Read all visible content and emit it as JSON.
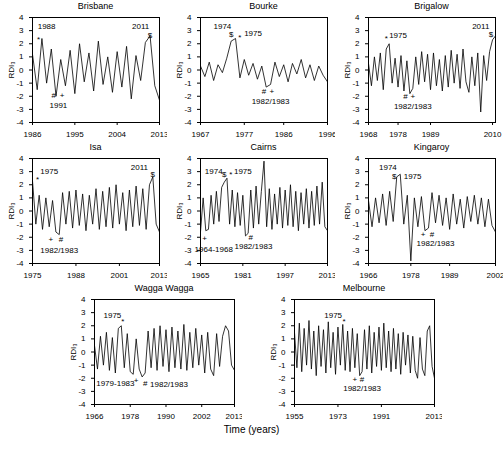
{
  "xlabel": "Time (years)",
  "chart_data": [
    {
      "type": "line",
      "title": "Brisbane",
      "ylabel": "RDI₃",
      "color": "#000000",
      "xlim": [
        1986,
        2013
      ],
      "xticks": [
        1986,
        1995,
        2004,
        2013
      ],
      "ylim": [
        -4,
        4
      ],
      "yticks": [
        -4,
        -3,
        -2,
        -1,
        0,
        1,
        2,
        3,
        4
      ],
      "x": [
        1986,
        1987,
        1988,
        1989,
        1990,
        1991,
        1992,
        1993,
        1994,
        1995,
        1996,
        1997,
        1998,
        1999,
        2000,
        2001,
        2002,
        2003,
        2004,
        2005,
        2006,
        2007,
        2008,
        2009,
        2010,
        2011,
        2012,
        2013
      ],
      "values": [
        1.2,
        -1.5,
        2.4,
        -1.0,
        1.6,
        -2.0,
        0.8,
        -1.2,
        1.5,
        -1.8,
        2.0,
        -0.9,
        1.3,
        -1.6,
        2.2,
        -1.1,
        1.0,
        -1.7,
        1.4,
        -1.3,
        1.8,
        -2.2,
        1.1,
        -0.8,
        2.1,
        2.6,
        -1.2,
        -2.3
      ],
      "annotations": [
        {
          "text": "1988",
          "x": 1989,
          "y": 3.3
        },
        {
          "text": "*",
          "x": 1987.3,
          "y": 2.3
        },
        {
          "text": "2011",
          "x": 2009,
          "y": 3.3
        },
        {
          "text": "$",
          "x": 2011,
          "y": 2.6
        },
        {
          "text": "#",
          "x": 1990.5,
          "y": -1.9
        },
        {
          "text": "+",
          "x": 1992.3,
          "y": -1.9
        },
        {
          "text": "1991",
          "x": 1991.5,
          "y": -2.7
        }
      ]
    },
    {
      "type": "line",
      "title": "Bourke",
      "ylabel": "RDI₃",
      "color": "#000000",
      "xlim": [
        1967,
        1996
      ],
      "xticks": [
        1967,
        1977,
        1986,
        1996
      ],
      "ylim": [
        -4,
        4
      ],
      "yticks": [
        -4,
        -3,
        -2,
        -1,
        0,
        1,
        2,
        3,
        4
      ],
      "x": [
        1967,
        1968,
        1969,
        1970,
        1971,
        1972,
        1973,
        1974,
        1975,
        1976,
        1977,
        1978,
        1979,
        1980,
        1981,
        1982,
        1983,
        1984,
        1985,
        1986,
        1987,
        1988,
        1989,
        1990,
        1991,
        1992,
        1993,
        1994,
        1995,
        1996
      ],
      "values": [
        0.3,
        -0.5,
        0.6,
        -0.8,
        0.4,
        -0.2,
        0.9,
        2.2,
        2.4,
        -0.6,
        0.8,
        -0.4,
        0.5,
        -0.7,
        0.3,
        -1.3,
        -1.1,
        0.6,
        -0.5,
        0.4,
        -0.9,
        0.5,
        -0.3,
        0.8,
        -0.6,
        0.4,
        -0.8,
        0.3,
        -0.4,
        -0.9
      ],
      "annotations": [
        {
          "text": "1974",
          "x": 1972,
          "y": 3.3
        },
        {
          "text": "$",
          "x": 1974,
          "y": 2.7
        },
        {
          "text": "*",
          "x": 1976,
          "y": 2.5
        },
        {
          "text": "1975",
          "x": 1979,
          "y": 2.8
        },
        {
          "text": "#",
          "x": 1981.5,
          "y": -1.6
        },
        {
          "text": "+",
          "x": 1983.3,
          "y": -1.6
        },
        {
          "text": "1982/1983",
          "x": 1983,
          "y": -2.4
        }
      ]
    },
    {
      "type": "line",
      "title": "Brigalow",
      "ylabel": "RDI₃",
      "color": "#000000",
      "xlim": [
        1968,
        2011
      ],
      "xticks": [
        1968,
        1978,
        1989,
        2010
      ],
      "ylim": [
        -4,
        4
      ],
      "yticks": [
        -4,
        -3,
        -2,
        -1,
        0,
        1,
        2,
        3,
        4
      ],
      "x": [
        1968,
        1969,
        1970,
        1971,
        1972,
        1973,
        1974,
        1975,
        1976,
        1977,
        1978,
        1979,
        1980,
        1981,
        1982,
        1983,
        1984,
        1985,
        1986,
        1987,
        1988,
        1989,
        1990,
        1991,
        1992,
        1993,
        1994,
        1995,
        1996,
        1997,
        1998,
        1999,
        2000,
        2001,
        2002,
        2003,
        2004,
        2005,
        2006,
        2007,
        2008,
        2009,
        2010,
        2011
      ],
      "values": [
        0.5,
        -1.2,
        1.0,
        -0.8,
        1.3,
        -1.5,
        1.6,
        2.0,
        -1.0,
        0.9,
        -1.3,
        1.1,
        -1.6,
        0.7,
        -1.8,
        -1.4,
        1.0,
        -1.1,
        1.4,
        -0.9,
        1.2,
        -1.5,
        1.3,
        -1.2,
        0.8,
        -1.6,
        1.1,
        -1.3,
        1.5,
        -1.0,
        1.2,
        -1.4,
        1.6,
        -0.9,
        -1.7,
        1.0,
        -1.2,
        1.3,
        -3.2,
        1.1,
        -0.8,
        1.4,
        2.3,
        2.6
      ],
      "annotations": [
        {
          "text": "*",
          "x": 1974,
          "y": 2.4
        },
        {
          "text": "1975",
          "x": 1978,
          "y": 2.6
        },
        {
          "text": "#",
          "x": 1980.5,
          "y": -2.0
        },
        {
          "text": "+",
          "x": 1983,
          "y": -2.0
        },
        {
          "text": "1982/1983",
          "x": 1983,
          "y": -2.8
        },
        {
          "text": "2011",
          "x": 2006,
          "y": 3.3
        },
        {
          "text": "$",
          "x": 2009.5,
          "y": 2.7
        }
      ]
    },
    {
      "type": "line",
      "title": "Isa",
      "ylabel": "RDI₃",
      "color": "#000000",
      "xlim": [
        1975,
        2013
      ],
      "xticks": [
        1975,
        1988,
        2001,
        2013
      ],
      "ylim": [
        -4,
        4
      ],
      "yticks": [
        -4,
        -3,
        -2,
        -1,
        0,
        1,
        2,
        3,
        4
      ],
      "x": [
        1975,
        1976,
        1977,
        1978,
        1979,
        1980,
        1981,
        1982,
        1983,
        1984,
        1985,
        1986,
        1987,
        1988,
        1989,
        1990,
        1991,
        1992,
        1993,
        1994,
        1995,
        1996,
        1997,
        1998,
        1999,
        2000,
        2001,
        2002,
        2003,
        2004,
        2005,
        2006,
        2007,
        2008,
        2009,
        2010,
        2011,
        2012,
        2013
      ],
      "values": [
        2.3,
        -1.0,
        1.2,
        -1.4,
        1.0,
        -1.2,
        0.8,
        -1.6,
        -1.8,
        1.4,
        -1.0,
        1.5,
        -1.3,
        1.6,
        -1.1,
        1.3,
        -1.5,
        1.2,
        -1.0,
        1.7,
        -1.4,
        1.5,
        -1.2,
        1.8,
        -1.3,
        2.0,
        -1.0,
        1.4,
        -1.5,
        1.6,
        -1.2,
        1.9,
        -1.1,
        1.7,
        -1.4,
        2.0,
        2.6,
        -1.0,
        -1.6
      ],
      "annotations": [
        {
          "text": "*",
          "x": 1976.5,
          "y": 2.4
        },
        {
          "text": "1975",
          "x": 1980,
          "y": 3.0
        },
        {
          "text": "2011",
          "x": 2007,
          "y": 3.3
        },
        {
          "text": "$",
          "x": 2011,
          "y": 2.8
        },
        {
          "text": "+",
          "x": 1980.5,
          "y": -2.2
        },
        {
          "text": "#",
          "x": 1983.5,
          "y": -2.2
        },
        {
          "text": "1982/1983",
          "x": 1983,
          "y": -3.0
        }
      ]
    },
    {
      "type": "line",
      "title": "Cairns",
      "ylabel": "RDI₃",
      "color": "#000000",
      "xlim": [
        1965,
        2013
      ],
      "xticks": [
        1965,
        1981,
        1997,
        2013
      ],
      "ylim": [
        -4,
        4
      ],
      "yticks": [
        -4,
        -3,
        -2,
        -1,
        0,
        1,
        2,
        3,
        4
      ],
      "x": [
        1965,
        1966,
        1967,
        1968,
        1969,
        1970,
        1971,
        1972,
        1973,
        1974,
        1975,
        1976,
        1977,
        1978,
        1979,
        1980,
        1981,
        1982,
        1983,
        1984,
        1985,
        1986,
        1987,
        1988,
        1989,
        1990,
        1991,
        1992,
        1993,
        1994,
        1995,
        1996,
        1997,
        1998,
        1999,
        2000,
        2001,
        2002,
        2003,
        2004,
        2005,
        2006,
        2007,
        2008,
        2009,
        2010,
        2011,
        2012,
        2013
      ],
      "values": [
        -1.6,
        1.0,
        -1.5,
        -1.4,
        1.2,
        -1.0,
        1.5,
        -0.8,
        1.8,
        2.2,
        2.5,
        -1.0,
        1.6,
        -1.2,
        1.4,
        -1.1,
        1.2,
        -1.9,
        -1.7,
        1.6,
        -1.3,
        1.9,
        -1.0,
        1.5,
        3.8,
        -1.2,
        1.7,
        -1.4,
        1.3,
        -1.0,
        1.8,
        -1.3,
        1.6,
        -1.1,
        2.0,
        -1.2,
        1.5,
        -1.5,
        1.4,
        -1.0,
        1.7,
        -1.3,
        1.5,
        -1.1,
        1.9,
        -1.0,
        2.2,
        -1.2,
        -1.5
      ],
      "annotations": [
        {
          "text": "1974",
          "x": 1970,
          "y": 3.0
        },
        {
          "text": "$",
          "x": 1974,
          "y": 2.8
        },
        {
          "text": "*",
          "x": 1976.5,
          "y": 2.8
        },
        {
          "text": "1975",
          "x": 1981,
          "y": 3.0
        },
        {
          "text": "+",
          "x": 1966.5,
          "y": -2.1
        },
        {
          "text": "1964-1968",
          "x": 1970,
          "y": -2.9
        },
        {
          "text": "#",
          "x": 1984,
          "y": -2.0
        },
        {
          "text": "1982/1983",
          "x": 1985,
          "y": -2.7
        }
      ]
    },
    {
      "type": "line",
      "title": "Kingaroy",
      "ylabel": "RDI₃",
      "color": "#000000",
      "xlim": [
        1966,
        2002
      ],
      "xticks": [
        1966,
        1978,
        1989,
        2002
      ],
      "ylim": [
        -4,
        4
      ],
      "yticks": [
        -4,
        -3,
        -2,
        -1,
        0,
        1,
        2,
        3,
        4
      ],
      "x": [
        1966,
        1967,
        1968,
        1969,
        1970,
        1971,
        1972,
        1973,
        1974,
        1975,
        1976,
        1977,
        1978,
        1979,
        1980,
        1981,
        1982,
        1983,
        1984,
        1985,
        1986,
        1987,
        1988,
        1989,
        1990,
        1991,
        1992,
        1993,
        1994,
        1995,
        1996,
        1997,
        1998,
        1999,
        2000,
        2001,
        2002
      ],
      "values": [
        0.8,
        -1.2,
        1.0,
        -0.9,
        1.3,
        -1.1,
        1.5,
        -0.8,
        2.6,
        2.8,
        -1.0,
        1.2,
        -3.8,
        1.0,
        -1.2,
        1.1,
        -1.5,
        -1.3,
        1.4,
        -0.9,
        1.2,
        -1.1,
        1.0,
        -1.4,
        1.3,
        -1.0,
        0.9,
        -1.3,
        1.1,
        -0.8,
        1.2,
        -1.0,
        1.0,
        -1.2,
        0.9,
        -1.1,
        -1.6
      ],
      "annotations": [
        {
          "text": "1974",
          "x": 1971.5,
          "y": 3.3
        },
        {
          "text": "$",
          "x": 1973.3,
          "y": 2.6
        },
        {
          "text": "1975",
          "x": 1978.5,
          "y": 2.6
        },
        {
          "text": "+",
          "x": 1981.5,
          "y": -1.8
        },
        {
          "text": "#",
          "x": 1984,
          "y": -1.8
        },
        {
          "text": "1982/1983",
          "x": 1985,
          "y": -2.5
        }
      ]
    },
    {
      "type": "line",
      "title": "Wagga Wagga",
      "ylabel": "RDI₃",
      "color": "#000000",
      "xlim": [
        1966,
        2013
      ],
      "xticks": [
        1966,
        1978,
        1990,
        2002,
        2013
      ],
      "ylim": [
        -4,
        4
      ],
      "yticks": [
        -4,
        -3,
        -2,
        -1,
        0,
        1,
        2,
        3,
        4
      ],
      "x": [
        1966,
        1967,
        1968,
        1969,
        1970,
        1971,
        1972,
        1973,
        1974,
        1975,
        1976,
        1977,
        1978,
        1979,
        1980,
        1981,
        1982,
        1983,
        1984,
        1985,
        1986,
        1987,
        1988,
        1989,
        1990,
        1991,
        1992,
        1993,
        1994,
        1995,
        1996,
        1997,
        1998,
        1999,
        2000,
        2001,
        2002,
        2003,
        2004,
        2005,
        2006,
        2007,
        2008,
        2009,
        2010,
        2011,
        2012,
        2013
      ],
      "values": [
        0.5,
        -1.3,
        1.2,
        -1.0,
        1.5,
        -1.4,
        1.1,
        -1.6,
        1.8,
        2.0,
        -1.2,
        1.4,
        -1.5,
        -1.7,
        1.0,
        -1.3,
        -1.9,
        -1.6,
        1.6,
        -1.2,
        1.8,
        -1.4,
        2.0,
        -1.1,
        1.7,
        -1.5,
        1.9,
        -1.2,
        1.6,
        -1.3,
        2.1,
        -1.4,
        1.5,
        -1.2,
        1.8,
        -1.0,
        1.3,
        -1.6,
        1.5,
        -1.3,
        -1.8,
        1.4,
        -1.1,
        1.2,
        2.0,
        1.6,
        -1.0,
        -1.4
      ],
      "annotations": [
        {
          "text": "1975",
          "x": 1972,
          "y": 2.8
        },
        {
          "text": "*",
          "x": 1975.5,
          "y": 2.3
        },
        {
          "text": "1979-1983",
          "x": 1973,
          "y": -2.4
        },
        {
          "text": "+",
          "x": 1980,
          "y": -2.2
        },
        {
          "text": "#",
          "x": 1983,
          "y": -2.4
        },
        {
          "text": "1982/1983",
          "x": 1991,
          "y": -2.5
        }
      ]
    },
    {
      "type": "line",
      "title": "Melbourne",
      "ylabel": "RDI₃",
      "color": "#000000",
      "xlim": [
        1955,
        2013
      ],
      "xticks": [
        1955,
        1973,
        1991,
        2013
      ],
      "ylim": [
        -4,
        4
      ],
      "yticks": [
        -4,
        -3,
        -2,
        -1,
        0,
        1,
        2,
        3,
        4
      ],
      "x": [
        1955,
        1956,
        1957,
        1958,
        1959,
        1960,
        1961,
        1962,
        1963,
        1964,
        1965,
        1966,
        1967,
        1968,
        1969,
        1970,
        1971,
        1972,
        1973,
        1974,
        1975,
        1976,
        1977,
        1978,
        1979,
        1980,
        1981,
        1982,
        1983,
        1984,
        1985,
        1986,
        1987,
        1988,
        1989,
        1990,
        1991,
        1992,
        1993,
        1994,
        1995,
        1996,
        1997,
        1998,
        1999,
        2000,
        2001,
        2002,
        2003,
        2004,
        2005,
        2006,
        2007,
        2008,
        2009,
        2010,
        2011,
        2012,
        2013
      ],
      "values": [
        1.5,
        -1.2,
        2.2,
        -1.5,
        1.8,
        -1.0,
        2.4,
        -1.3,
        1.6,
        -1.8,
        2.0,
        -1.1,
        1.7,
        -1.6,
        2.3,
        -1.2,
        1.5,
        -1.7,
        1.9,
        -1.0,
        2.1,
        -1.4,
        1.6,
        -1.5,
        1.8,
        -1.2,
        1.4,
        -1.8,
        -1.5,
        1.7,
        -1.3,
        2.0,
        -1.6,
        1.5,
        -1.1,
        1.9,
        -1.4,
        2.2,
        -1.2,
        1.6,
        -1.5,
        1.8,
        -1.3,
        1.4,
        -1.7,
        1.5,
        -1.0,
        1.3,
        -1.6,
        1.2,
        -1.4,
        -2.0,
        1.1,
        -1.3,
        -1.8,
        1.6,
        2.0,
        -1.1,
        -2.0
      ],
      "annotations": [
        {
          "text": "1975",
          "x": 1971,
          "y": 2.8
        },
        {
          "text": "*",
          "x": 1975.5,
          "y": 2.3
        },
        {
          "text": "+",
          "x": 1980,
          "y": -2.1
        },
        {
          "text": "#",
          "x": 1983,
          "y": -2.1
        },
        {
          "text": "1982/1983",
          "x": 1983,
          "y": -2.8
        }
      ]
    }
  ]
}
